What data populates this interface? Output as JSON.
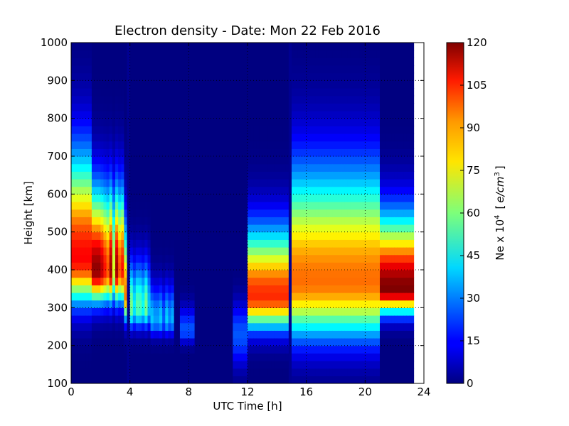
{
  "chart_data": {
    "type": "heatmap",
    "title": "Electron density - Date: Mon 22 Feb 2016",
    "xlabel": "UTC Time [h]",
    "ylabel": "Height [km]",
    "xlim": [
      0,
      24
    ],
    "ylim": [
      100,
      1000
    ],
    "x_ticks": [
      "0",
      "4",
      "8",
      "12",
      "16",
      "20",
      "24"
    ],
    "y_ticks": [
      "100",
      "200",
      "300",
      "400",
      "500",
      "600",
      "700",
      "800",
      "900",
      "1000"
    ],
    "grid": true,
    "colorbar": {
      "label_prefix": "Ne x 10",
      "label_exp": "4",
      "label_unit_open": "[",
      "label_unit": "e/cm",
      "label_unit_exp": "3",
      "label_unit_close": "]",
      "range": [
        0,
        120
      ],
      "ticks": [
        "0",
        "15",
        "30",
        "45",
        "60",
        "75",
        "90",
        "105",
        "120"
      ],
      "colormap": "jet"
    },
    "data_x_max": 23.3,
    "profiles": [
      {
        "t0": 0.0,
        "t1": 1.5,
        "h_peak": 430,
        "ne_peak": 105,
        "w_below": 110,
        "w_above": 260
      },
      {
        "t0": 0.8,
        "t1": 0.9,
        "h_peak": 520,
        "ne_peak": 115,
        "w_below": 140,
        "w_above": 300
      },
      {
        "t0": 1.5,
        "t1": 3.6,
        "h_peak": 400,
        "ne_peak": 118,
        "w_below": 80,
        "w_above": 200
      },
      {
        "t0": 3.6,
        "t1": 4.0,
        "h_peak": 330,
        "ne_peak": 95,
        "w_below": 60,
        "w_above": 180
      },
      {
        "t0": 4.0,
        "t1": 5.5,
        "h_peak": 300,
        "ne_peak": 60,
        "w_below": 50,
        "w_above": 120
      },
      {
        "t0": 5.5,
        "t1": 7.0,
        "h_peak": 270,
        "ne_peak": 40,
        "w_below": 40,
        "w_above": 90
      },
      {
        "t0": 7.5,
        "t1": 8.5,
        "h_peak": 240,
        "ne_peak": 25,
        "w_below": 30,
        "w_above": 60
      },
      {
        "t0": 11.0,
        "t1": 12.0,
        "h_peak": 230,
        "ne_peak": 25,
        "w_below": 80,
        "w_above": 80
      },
      {
        "t0": 12.0,
        "t1": 14.9,
        "h_peak": 330,
        "ne_peak": 100,
        "w_below": 80,
        "w_above": 170
      },
      {
        "t0": 15.0,
        "t1": 21.0,
        "h_peak": 370,
        "ne_peak": 92,
        "w_below": 140,
        "w_above": 280
      },
      {
        "t0": 21.0,
        "t1": 23.3,
        "h_peak": 350,
        "ne_peak": 120,
        "w_below": 60,
        "w_above": 180
      }
    ],
    "dark_bands": [
      3.9,
      14.9
    ]
  }
}
